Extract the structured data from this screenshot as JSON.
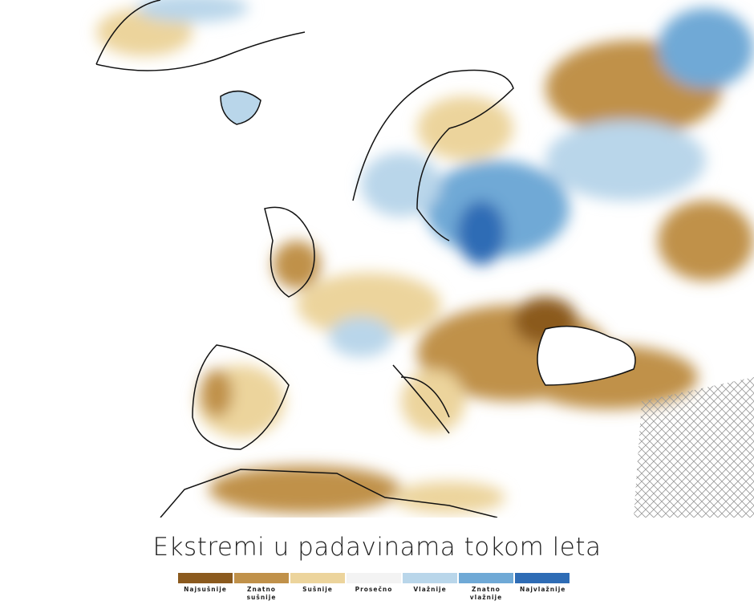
{
  "title": "Ekstremi u padavinama tokom leta",
  "legend": [
    {
      "label": "Najsušnije",
      "color": "#8b5a1e"
    },
    {
      "label": "Znatno sušnije",
      "color": "#c0914a"
    },
    {
      "label": "Sušnije",
      "color": "#ecd49c"
    },
    {
      "label": "Prosečno",
      "color": "#f3f3f3"
    },
    {
      "label": "Vlažnije",
      "color": "#b9d6ea"
    },
    {
      "label": "Znatno vlažnije",
      "color": "#6fa9d6"
    },
    {
      "label": "Najvlažnije",
      "color": "#2e6cb5"
    }
  ]
}
